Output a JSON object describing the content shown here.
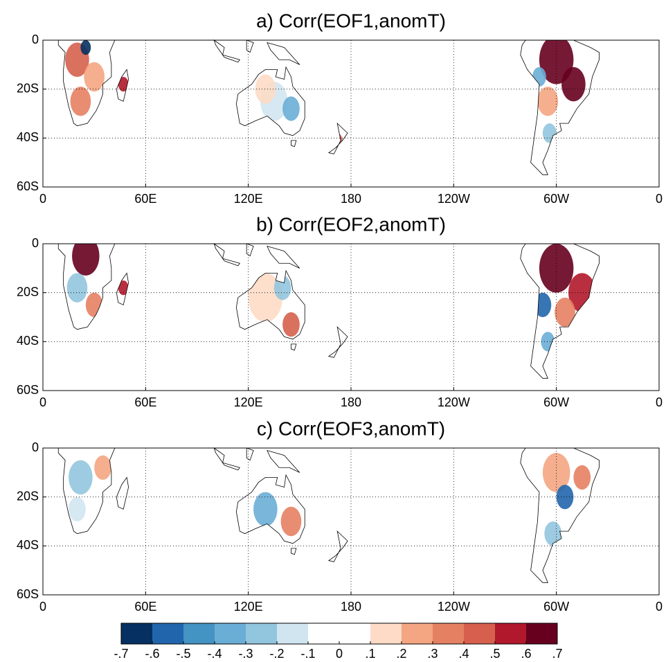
{
  "chart_data": [
    {
      "type": "map",
      "title": "a) Corr(EOF1,anomT)",
      "xlim": [
        0,
        360
      ],
      "ylim": [
        -60,
        0
      ],
      "xticks": [
        0,
        {
          "value": 60,
          "label": "60E"
        },
        {
          "value": 120,
          "label": "120E"
        },
        180,
        {
          "value": 240,
          "label": "120W"
        },
        {
          "value": 300,
          "label": "60W"
        },
        {
          "value": 360,
          "label": "0"
        }
      ],
      "yticks": [
        0,
        {
          "value": -20,
          "label": "20S"
        },
        {
          "value": -40,
          "label": "40S"
        },
        {
          "value": -60,
          "label": "60S"
        }
      ],
      "grid": true
    },
    {
      "type": "map",
      "title": "b) Corr(EOF2,anomT)",
      "xlim": [
        0,
        360
      ],
      "ylim": [
        -60,
        0
      ],
      "xticks": [
        0,
        {
          "value": 60,
          "label": "60E"
        },
        {
          "value": 120,
          "label": "120E"
        },
        180,
        {
          "value": 240,
          "label": "120W"
        },
        {
          "value": 300,
          "label": "60W"
        },
        {
          "value": 360,
          "label": "0"
        }
      ],
      "yticks": [
        0,
        {
          "value": -20,
          "label": "20S"
        },
        {
          "value": -40,
          "label": "40S"
        },
        {
          "value": -60,
          "label": "60S"
        }
      ],
      "grid": true
    },
    {
      "type": "map",
      "title": "c) Corr(EOF3,anomT)",
      "xlim": [
        0,
        360
      ],
      "ylim": [
        -60,
        0
      ],
      "xticks": [
        0,
        {
          "value": 60,
          "label": "60E"
        },
        {
          "value": 120,
          "label": "120E"
        },
        180,
        {
          "value": 240,
          "label": "120W"
        },
        {
          "value": 300,
          "label": "60W"
        },
        {
          "value": 360,
          "label": "0"
        }
      ],
      "yticks": [
        0,
        {
          "value": -20,
          "label": "20S"
        },
        {
          "value": -40,
          "label": "40S"
        },
        {
          "value": -60,
          "label": "60S"
        }
      ],
      "grid": true
    }
  ],
  "colorbar": {
    "lim": [
      -0.7,
      0.7
    ],
    "ticks": [
      {
        "value": -0.7,
        "label": "-.7"
      },
      {
        "value": -0.6,
        "label": "-.6"
      },
      {
        "value": -0.5,
        "label": "-.5"
      },
      {
        "value": -0.4,
        "label": "-.4"
      },
      {
        "value": -0.3,
        "label": "-.3"
      },
      {
        "value": -0.2,
        "label": "-.2"
      },
      {
        "value": -0.1,
        "label": "-.1"
      },
      0,
      {
        "value": 0.1,
        "label": ".1"
      },
      {
        "value": 0.2,
        "label": ".2"
      },
      {
        "value": 0.3,
        "label": ".3"
      },
      {
        "value": 0.4,
        "label": ".4"
      },
      {
        "value": 0.5,
        "label": ".5"
      },
      {
        "value": 0.6,
        "label": ".6"
      },
      {
        "value": 0.7,
        "label": ".7"
      }
    ],
    "colors": [
      "#053061",
      "#2166ac",
      "#4393c3",
      "#6aaed6",
      "#92c5de",
      "#d1e5f0",
      "#ffffff",
      "#ffffff",
      "#fddbc7",
      "#f4a582",
      "#e58163",
      "#d6604d",
      "#b2182b",
      "#67001f"
    ]
  }
}
